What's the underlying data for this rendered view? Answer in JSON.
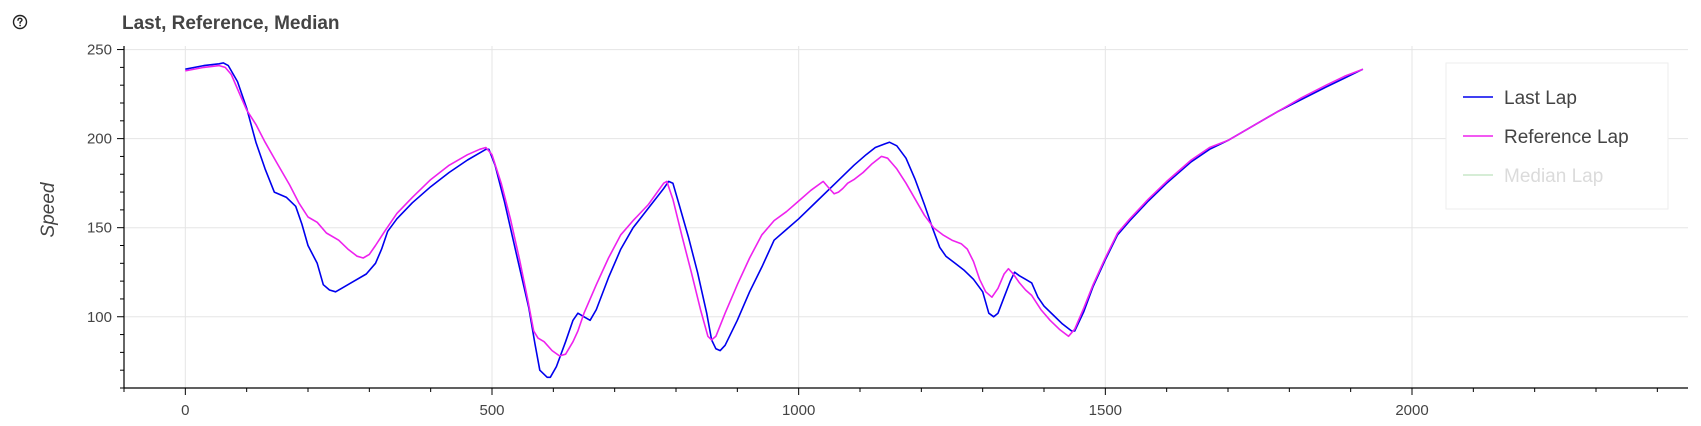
{
  "chart_data": {
    "type": "line",
    "title": "Last, Reference, Median",
    "xlabel": "",
    "ylabel": "Speed",
    "xlim": [
      -100,
      2450
    ],
    "ylim": [
      60,
      252
    ],
    "xticks": [
      0,
      500,
      1000,
      1500,
      2000
    ],
    "yticks": [
      100,
      150,
      200,
      250
    ],
    "grid": true,
    "legend_position": "top-right",
    "series": [
      {
        "name": "Last Lap",
        "color": "#0000ee",
        "muted": false,
        "points": [
          [
            0,
            239
          ],
          [
            30,
            241
          ],
          [
            55,
            242
          ],
          [
            62,
            242.5
          ],
          [
            70,
            241
          ],
          [
            85,
            232
          ],
          [
            100,
            217
          ],
          [
            115,
            198
          ],
          [
            130,
            183
          ],
          [
            145,
            170
          ],
          [
            165,
            167
          ],
          [
            180,
            162
          ],
          [
            190,
            152
          ],
          [
            200,
            140
          ],
          [
            215,
            130
          ],
          [
            225,
            118
          ],
          [
            235,
            115
          ],
          [
            245,
            114
          ],
          [
            255,
            116
          ],
          [
            270,
            119
          ],
          [
            295,
            124
          ],
          [
            310,
            130
          ],
          [
            320,
            138
          ],
          [
            330,
            148
          ],
          [
            345,
            155
          ],
          [
            370,
            164
          ],
          [
            400,
            173
          ],
          [
            430,
            181
          ],
          [
            460,
            188
          ],
          [
            480,
            192
          ],
          [
            490,
            194
          ],
          [
            495,
            194
          ],
          [
            505,
            185
          ],
          [
            520,
            165
          ],
          [
            540,
            135
          ],
          [
            560,
            105
          ],
          [
            570,
            85
          ],
          [
            578,
            70
          ],
          [
            590,
            66
          ],
          [
            595,
            66
          ],
          [
            605,
            72
          ],
          [
            620,
            86
          ],
          [
            632,
            98
          ],
          [
            640,
            102
          ],
          [
            650,
            100
          ],
          [
            660,
            98
          ],
          [
            670,
            104
          ],
          [
            690,
            122
          ],
          [
            710,
            138
          ],
          [
            730,
            150
          ],
          [
            755,
            161
          ],
          [
            780,
            172
          ],
          [
            788,
            176
          ],
          [
            795,
            175
          ],
          [
            805,
            163
          ],
          [
            820,
            145
          ],
          [
            835,
            125
          ],
          [
            850,
            102
          ],
          [
            858,
            87
          ],
          [
            865,
            82
          ],
          [
            872,
            81
          ],
          [
            880,
            84
          ],
          [
            900,
            98
          ],
          [
            920,
            114
          ],
          [
            940,
            128
          ],
          [
            960,
            143
          ],
          [
            980,
            149
          ],
          [
            1000,
            155
          ],
          [
            1030,
            165
          ],
          [
            1060,
            175
          ],
          [
            1090,
            185
          ],
          [
            1110,
            191
          ],
          [
            1125,
            195
          ],
          [
            1140,
            197
          ],
          [
            1148,
            198
          ],
          [
            1160,
            196
          ],
          [
            1175,
            189
          ],
          [
            1190,
            177
          ],
          [
            1205,
            163
          ],
          [
            1218,
            150
          ],
          [
            1230,
            139
          ],
          [
            1240,
            134
          ],
          [
            1255,
            130
          ],
          [
            1270,
            126
          ],
          [
            1285,
            121
          ],
          [
            1300,
            114
          ],
          [
            1310,
            102
          ],
          [
            1318,
            100
          ],
          [
            1325,
            102
          ],
          [
            1335,
            111
          ],
          [
            1345,
            120
          ],
          [
            1352,
            125
          ],
          [
            1360,
            123
          ],
          [
            1370,
            121
          ],
          [
            1380,
            119
          ],
          [
            1390,
            111
          ],
          [
            1400,
            106
          ],
          [
            1415,
            101
          ],
          [
            1430,
            96
          ],
          [
            1445,
            92
          ],
          [
            1450,
            92
          ],
          [
            1465,
            103
          ],
          [
            1480,
            117
          ],
          [
            1500,
            132
          ],
          [
            1520,
            146
          ],
          [
            1540,
            154
          ],
          [
            1570,
            165
          ],
          [
            1600,
            175
          ],
          [
            1640,
            187
          ],
          [
            1670,
            194
          ],
          [
            1700,
            199
          ],
          [
            1740,
            207
          ],
          [
            1780,
            215
          ],
          [
            1820,
            222
          ],
          [
            1860,
            229
          ],
          [
            1890,
            234
          ],
          [
            1920,
            239
          ]
        ]
      },
      {
        "name": "Reference Lap",
        "color": "#ee22ee",
        "muted": false,
        "points": [
          [
            0,
            238
          ],
          [
            30,
            240
          ],
          [
            55,
            241
          ],
          [
            65,
            240
          ],
          [
            75,
            236
          ],
          [
            90,
            224
          ],
          [
            100,
            216
          ],
          [
            115,
            208
          ],
          [
            130,
            198
          ],
          [
            150,
            186
          ],
          [
            170,
            174
          ],
          [
            185,
            164
          ],
          [
            200,
            156
          ],
          [
            215,
            153
          ],
          [
            230,
            147
          ],
          [
            250,
            143
          ],
          [
            265,
            138
          ],
          [
            280,
            134
          ],
          [
            290,
            133
          ],
          [
            300,
            135
          ],
          [
            310,
            140
          ],
          [
            325,
            148
          ],
          [
            345,
            158
          ],
          [
            370,
            167
          ],
          [
            400,
            177
          ],
          [
            430,
            185
          ],
          [
            460,
            191
          ],
          [
            480,
            194
          ],
          [
            490,
            195
          ],
          [
            500,
            191
          ],
          [
            515,
            175
          ],
          [
            530,
            155
          ],
          [
            545,
            132
          ],
          [
            558,
            110
          ],
          [
            568,
            92
          ],
          [
            575,
            88
          ],
          [
            585,
            86
          ],
          [
            598,
            81
          ],
          [
            610,
            78
          ],
          [
            620,
            79
          ],
          [
            632,
            86
          ],
          [
            640,
            92
          ],
          [
            650,
            102
          ],
          [
            670,
            118
          ],
          [
            690,
            133
          ],
          [
            710,
            146
          ],
          [
            730,
            154
          ],
          [
            755,
            163
          ],
          [
            780,
            175
          ],
          [
            785,
            176
          ],
          [
            795,
            166
          ],
          [
            810,
            145
          ],
          [
            825,
            125
          ],
          [
            840,
            104
          ],
          [
            852,
            89
          ],
          [
            858,
            87
          ],
          [
            865,
            89
          ],
          [
            880,
            102
          ],
          [
            900,
            118
          ],
          [
            920,
            133
          ],
          [
            940,
            146
          ],
          [
            960,
            154
          ],
          [
            980,
            159
          ],
          [
            1000,
            165
          ],
          [
            1020,
            171
          ],
          [
            1040,
            176
          ],
          [
            1050,
            172
          ],
          [
            1058,
            169
          ],
          [
            1065,
            170
          ],
          [
            1072,
            172
          ],
          [
            1080,
            175
          ],
          [
            1090,
            177
          ],
          [
            1105,
            181
          ],
          [
            1120,
            186
          ],
          [
            1135,
            190
          ],
          [
            1145,
            189
          ],
          [
            1160,
            183
          ],
          [
            1175,
            175
          ],
          [
            1190,
            166
          ],
          [
            1205,
            157
          ],
          [
            1220,
            150
          ],
          [
            1235,
            146
          ],
          [
            1250,
            143
          ],
          [
            1265,
            141
          ],
          [
            1275,
            138
          ],
          [
            1285,
            131
          ],
          [
            1295,
            121
          ],
          [
            1305,
            114
          ],
          [
            1315,
            111
          ],
          [
            1325,
            116
          ],
          [
            1335,
            124
          ],
          [
            1342,
            127
          ],
          [
            1350,
            124
          ],
          [
            1360,
            119
          ],
          [
            1370,
            115
          ],
          [
            1380,
            112
          ],
          [
            1395,
            104
          ],
          [
            1410,
            98
          ],
          [
            1425,
            93
          ],
          [
            1440,
            89
          ],
          [
            1450,
            93
          ],
          [
            1465,
            105
          ],
          [
            1480,
            118
          ],
          [
            1500,
            133
          ],
          [
            1520,
            147
          ],
          [
            1540,
            155
          ],
          [
            1570,
            166
          ],
          [
            1600,
            176
          ],
          [
            1640,
            188
          ],
          [
            1670,
            195
          ],
          [
            1700,
            199
          ],
          [
            1740,
            207
          ],
          [
            1780,
            215
          ],
          [
            1820,
            223
          ],
          [
            1860,
            230
          ],
          [
            1890,
            235
          ],
          [
            1920,
            239
          ]
        ]
      },
      {
        "name": "Median Lap",
        "color": "#66bb66",
        "muted": true,
        "points": []
      }
    ]
  }
}
